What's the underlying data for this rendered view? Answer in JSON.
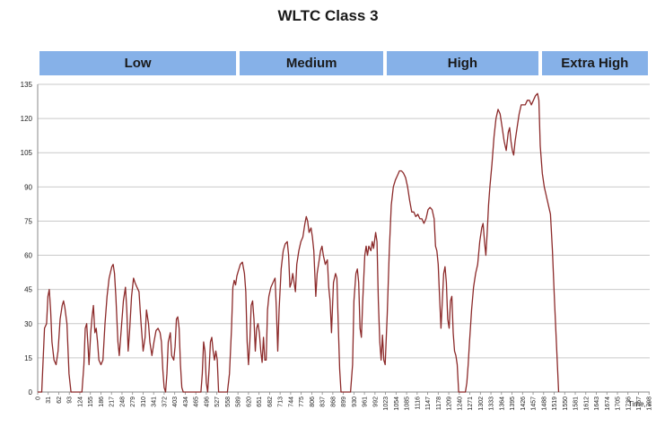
{
  "chart_data": {
    "type": "line",
    "title": "WLTC Class 3",
    "xlabel": "Time, s",
    "ylabel": "",
    "ylim": [
      0,
      135
    ],
    "xlim": [
      0,
      1800
    ],
    "yticks": [
      "0",
      "15",
      "30",
      "45",
      "60",
      "75",
      "90",
      "105",
      "120",
      "135"
    ],
    "xticks": [
      "0",
      "31",
      "62",
      "93",
      "124",
      "155",
      "186",
      "217",
      "248",
      "279",
      "310",
      "341",
      "372",
      "403",
      "434",
      "465",
      "496",
      "527",
      "558",
      "589",
      "620",
      "651",
      "682",
      "713",
      "744",
      "775",
      "806",
      "837",
      "868",
      "899",
      "930",
      "961",
      "992",
      "1023",
      "1054",
      "1085",
      "1116",
      "1147",
      "1178",
      "1209",
      "1240",
      "1271",
      "1302",
      "1333",
      "1364",
      "1395",
      "1426",
      "1457",
      "1488",
      "1519",
      "1550",
      "1581",
      "1612",
      "1643",
      "1674",
      "1705",
      "1736",
      "1767",
      "1798"
    ],
    "grid": true,
    "line_color": "#8c2a2a",
    "band_color": "#86b1e8",
    "phases": [
      {
        "label": "Low",
        "start": 0,
        "end": 589
      },
      {
        "label": "Medium",
        "start": 589,
        "end": 1022
      },
      {
        "label": "High",
        "start": 1022,
        "end": 1477
      },
      {
        "label": "Extra High",
        "start": 1477,
        "end": 1800
      }
    ],
    "series": [
      {
        "points": [
          [
            0,
            0
          ],
          [
            12,
            0
          ],
          [
            20,
            28
          ],
          [
            26,
            30
          ],
          [
            30,
            42
          ],
          [
            34,
            45
          ],
          [
            38,
            36
          ],
          [
            42,
            22
          ],
          [
            48,
            14
          ],
          [
            54,
            12
          ],
          [
            60,
            18
          ],
          [
            66,
            32
          ],
          [
            72,
            38
          ],
          [
            76,
            40
          ],
          [
            80,
            37
          ],
          [
            86,
            30
          ],
          [
            92,
            8
          ],
          [
            98,
            0
          ],
          [
            130,
            0
          ],
          [
            136,
            12
          ],
          [
            140,
            28
          ],
          [
            144,
            30
          ],
          [
            148,
            20
          ],
          [
            151,
            12
          ],
          [
            156,
            26
          ],
          [
            160,
            33
          ],
          [
            164,
            38
          ],
          [
            168,
            26
          ],
          [
            172,
            28
          ],
          [
            176,
            22
          ],
          [
            180,
            14
          ],
          [
            186,
            12
          ],
          [
            192,
            14
          ],
          [
            198,
            30
          ],
          [
            204,
            42
          ],
          [
            210,
            50
          ],
          [
            218,
            55
          ],
          [
            222,
            56
          ],
          [
            226,
            52
          ],
          [
            230,
            42
          ],
          [
            236,
            22
          ],
          [
            240,
            16
          ],
          [
            246,
            28
          ],
          [
            252,
            40
          ],
          [
            258,
            46
          ],
          [
            262,
            36
          ],
          [
            266,
            18
          ],
          [
            270,
            26
          ],
          [
            276,
            42
          ],
          [
            282,
            50
          ],
          [
            286,
            48
          ],
          [
            292,
            46
          ],
          [
            298,
            44
          ],
          [
            304,
            30
          ],
          [
            310,
            18
          ],
          [
            316,
            24
          ],
          [
            320,
            36
          ],
          [
            326,
            30
          ],
          [
            330,
            22
          ],
          [
            336,
            16
          ],
          [
            342,
            22
          ],
          [
            348,
            27
          ],
          [
            354,
            28
          ],
          [
            360,
            26
          ],
          [
            364,
            22
          ],
          [
            368,
            10
          ],
          [
            372,
            2
          ],
          [
            376,
            0
          ],
          [
            380,
            8
          ],
          [
            384,
            22
          ],
          [
            390,
            26
          ],
          [
            394,
            16
          ],
          [
            400,
            14
          ],
          [
            404,
            20
          ],
          [
            408,
            32
          ],
          [
            412,
            33
          ],
          [
            416,
            28
          ],
          [
            420,
            12
          ],
          [
            424,
            2
          ],
          [
            428,
            0
          ],
          [
            480,
            0
          ],
          [
            484,
            8
          ],
          [
            488,
            22
          ],
          [
            492,
            18
          ],
          [
            496,
            4
          ],
          [
            500,
            0
          ],
          [
            504,
            10
          ],
          [
            508,
            22
          ],
          [
            512,
            24
          ],
          [
            516,
            18
          ],
          [
            520,
            14
          ],
          [
            524,
            18
          ],
          [
            528,
            14
          ],
          [
            532,
            0
          ],
          [
            558,
            0
          ],
          [
            564,
            8
          ],
          [
            570,
            28
          ],
          [
            574,
            46
          ],
          [
            578,
            49
          ],
          [
            582,
            47
          ],
          [
            586,
            51
          ],
          [
            590,
            53
          ],
          [
            596,
            56
          ],
          [
            602,
            57
          ],
          [
            608,
            52
          ],
          [
            612,
            44
          ],
          [
            616,
            22
          ],
          [
            620,
            12
          ],
          [
            624,
            22
          ],
          [
            628,
            38
          ],
          [
            632,
            40
          ],
          [
            636,
            32
          ],
          [
            640,
            18
          ],
          [
            644,
            28
          ],
          [
            648,
            30
          ],
          [
            652,
            26
          ],
          [
            656,
            18
          ],
          [
            660,
            13
          ],
          [
            664,
            24
          ],
          [
            668,
            14
          ],
          [
            672,
            14
          ],
          [
            676,
            36
          ],
          [
            680,
            42
          ],
          [
            686,
            46
          ],
          [
            692,
            48
          ],
          [
            698,
            50
          ],
          [
            702,
            36
          ],
          [
            706,
            18
          ],
          [
            710,
            36
          ],
          [
            716,
            54
          ],
          [
            722,
            62
          ],
          [
            728,
            65
          ],
          [
            734,
            66
          ],
          [
            738,
            60
          ],
          [
            742,
            46
          ],
          [
            746,
            48
          ],
          [
            750,
            52
          ],
          [
            754,
            48
          ],
          [
            758,
            44
          ],
          [
            762,
            56
          ],
          [
            768,
            62
          ],
          [
            774,
            66
          ],
          [
            780,
            68
          ],
          [
            786,
            74
          ],
          [
            790,
            77
          ],
          [
            794,
            75
          ],
          [
            798,
            70
          ],
          [
            804,
            72
          ],
          [
            808,
            68
          ],
          [
            812,
            62
          ],
          [
            818,
            42
          ],
          [
            822,
            52
          ],
          [
            828,
            58
          ],
          [
            832,
            62
          ],
          [
            836,
            64
          ],
          [
            840,
            60
          ],
          [
            846,
            56
          ],
          [
            852,
            58
          ],
          [
            856,
            46
          ],
          [
            860,
            40
          ],
          [
            864,
            26
          ],
          [
            870,
            48
          ],
          [
            876,
            52
          ],
          [
            880,
            50
          ],
          [
            884,
            30
          ],
          [
            888,
            10
          ],
          [
            892,
            0
          ],
          [
            920,
            0
          ],
          [
            926,
            12
          ],
          [
            930,
            40
          ],
          [
            936,
            52
          ],
          [
            940,
            54
          ],
          [
            944,
            48
          ],
          [
            948,
            28
          ],
          [
            952,
            24
          ],
          [
            956,
            40
          ],
          [
            962,
            60
          ],
          [
            966,
            64
          ],
          [
            970,
            60
          ],
          [
            974,
            64
          ],
          [
            980,
            62
          ],
          [
            984,
            66
          ],
          [
            988,
            63
          ],
          [
            994,
            70
          ],
          [
            998,
            66
          ],
          [
            1002,
            40
          ],
          [
            1006,
            22
          ],
          [
            1010,
            14
          ],
          [
            1014,
            25
          ],
          [
            1018,
            14
          ],
          [
            1022,
            12
          ],
          [
            1028,
            34
          ],
          [
            1034,
            62
          ],
          [
            1040,
            82
          ],
          [
            1046,
            90
          ],
          [
            1052,
            93
          ],
          [
            1058,
            95
          ],
          [
            1064,
            97
          ],
          [
            1070,
            97
          ],
          [
            1076,
            96
          ],
          [
            1082,
            94
          ],
          [
            1088,
            90
          ],
          [
            1094,
            84
          ],
          [
            1100,
            79
          ],
          [
            1106,
            79
          ],
          [
            1112,
            77
          ],
          [
            1118,
            78
          ],
          [
            1124,
            76
          ],
          [
            1130,
            76
          ],
          [
            1136,
            74
          ],
          [
            1142,
            76
          ],
          [
            1148,
            80
          ],
          [
            1154,
            81
          ],
          [
            1160,
            80
          ],
          [
            1166,
            76
          ],
          [
            1170,
            64
          ],
          [
            1174,
            62
          ],
          [
            1178,
            56
          ],
          [
            1182,
            42
          ],
          [
            1186,
            28
          ],
          [
            1190,
            40
          ],
          [
            1194,
            52
          ],
          [
            1198,
            55
          ],
          [
            1202,
            48
          ],
          [
            1206,
            32
          ],
          [
            1210,
            28
          ],
          [
            1214,
            40
          ],
          [
            1218,
            42
          ],
          [
            1222,
            26
          ],
          [
            1226,
            18
          ],
          [
            1230,
            16
          ],
          [
            1234,
            12
          ],
          [
            1238,
            0
          ],
          [
            1258,
            0
          ],
          [
            1262,
            4
          ],
          [
            1266,
            12
          ],
          [
            1270,
            22
          ],
          [
            1276,
            36
          ],
          [
            1282,
            46
          ],
          [
            1288,
            52
          ],
          [
            1294,
            56
          ],
          [
            1300,
            66
          ],
          [
            1306,
            72
          ],
          [
            1310,
            74
          ],
          [
            1314,
            66
          ],
          [
            1318,
            60
          ],
          [
            1322,
            70
          ],
          [
            1326,
            82
          ],
          [
            1330,
            90
          ],
          [
            1336,
            100
          ],
          [
            1342,
            112
          ],
          [
            1348,
            120
          ],
          [
            1354,
            124
          ],
          [
            1360,
            122
          ],
          [
            1366,
            116
          ],
          [
            1372,
            110
          ],
          [
            1378,
            106
          ],
          [
            1384,
            114
          ],
          [
            1388,
            116
          ],
          [
            1392,
            110
          ],
          [
            1396,
            106
          ],
          [
            1400,
            104
          ],
          [
            1404,
            110
          ],
          [
            1410,
            116
          ],
          [
            1416,
            122
          ],
          [
            1422,
            126
          ],
          [
            1428,
            126
          ],
          [
            1434,
            126
          ],
          [
            1440,
            128
          ],
          [
            1446,
            128
          ],
          [
            1452,
            126
          ],
          [
            1458,
            128
          ],
          [
            1464,
            130
          ],
          [
            1470,
            131
          ],
          [
            1474,
            128
          ],
          [
            1478,
            108
          ],
          [
            1484,
            96
          ],
          [
            1490,
            90
          ],
          [
            1496,
            86
          ],
          [
            1502,
            82
          ],
          [
            1508,
            78
          ],
          [
            1514,
            62
          ],
          [
            1520,
            40
          ],
          [
            1526,
            20
          ],
          [
            1532,
            0
          ]
        ]
      }
    ]
  }
}
